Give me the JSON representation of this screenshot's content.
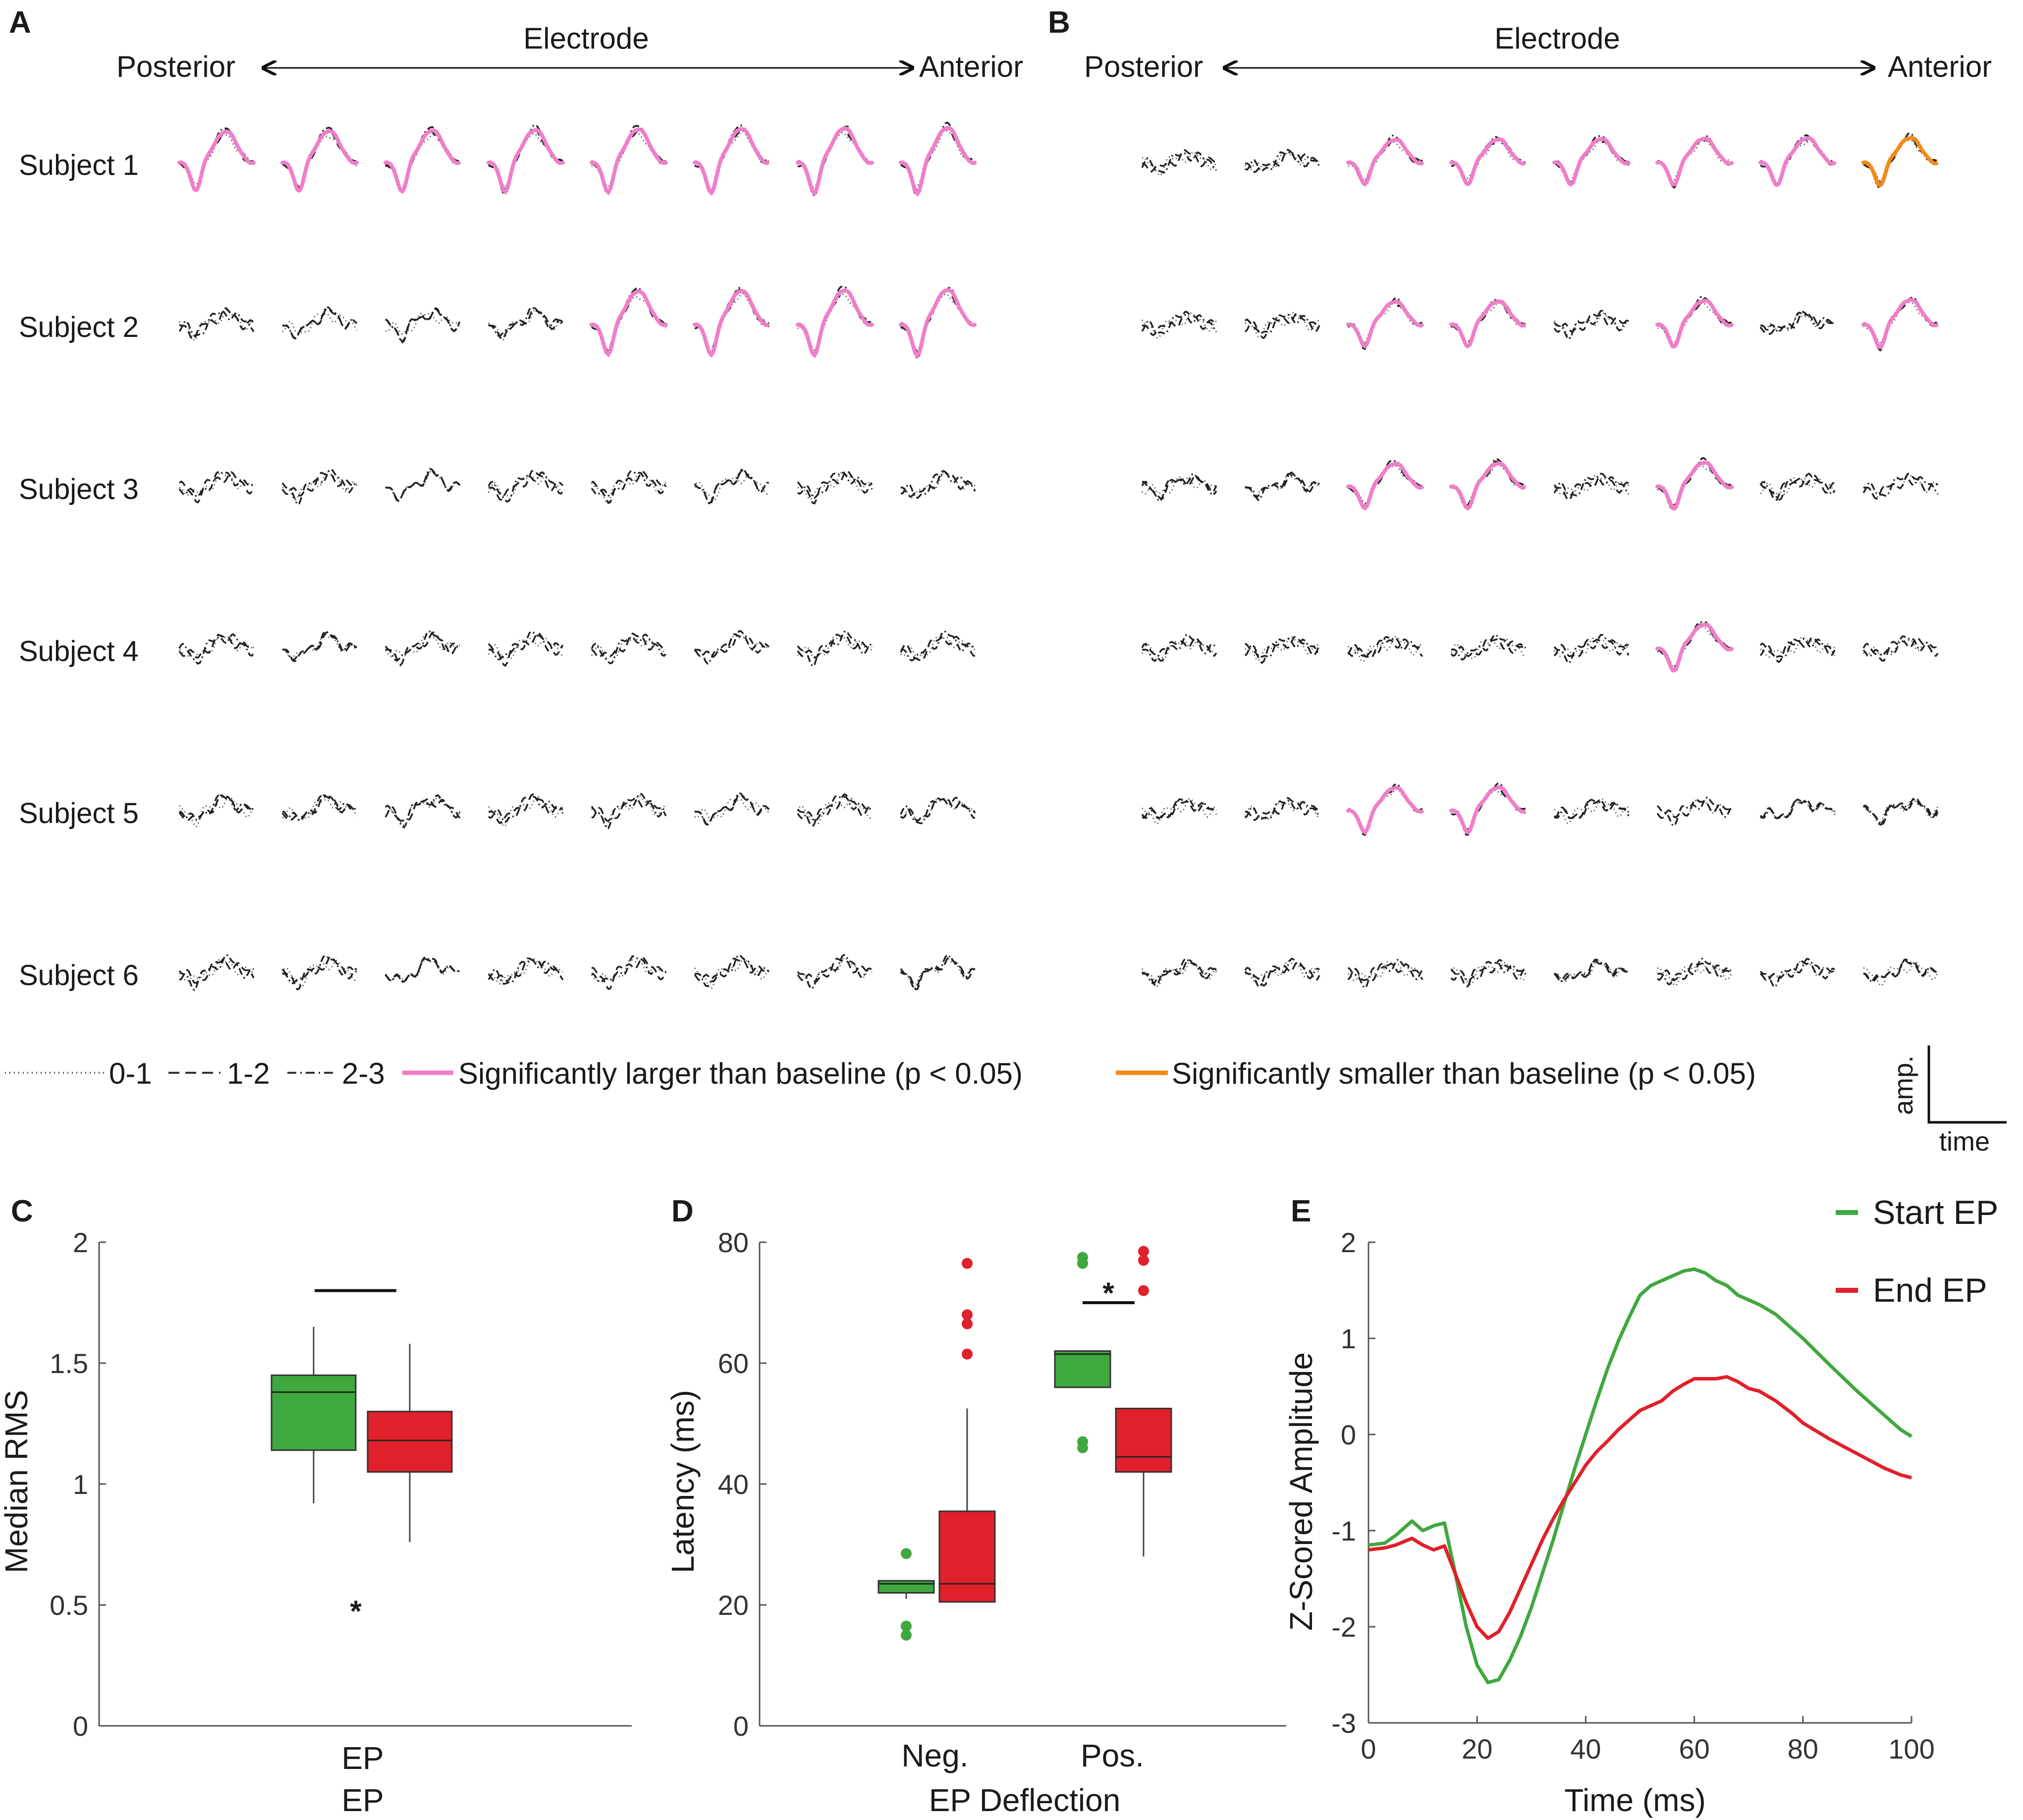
{
  "panels": {
    "A": "A",
    "B": "B",
    "C": "C",
    "D": "D",
    "E": "E"
  },
  "top": {
    "electrode_label": "Electrode",
    "posterior_label": "Posterior",
    "anterior_label": "Anterior",
    "subjects": [
      "Subject 1",
      "Subject 2",
      "Subject 3",
      "Subject 4",
      "Subject 5",
      "Subject 6"
    ],
    "electrodes_per_panel": 8,
    "significance_A": [
      [
        1,
        1,
        1,
        1,
        1,
        1,
        1,
        1
      ],
      [
        0,
        0,
        0,
        0,
        1,
        1,
        1,
        1
      ],
      [
        0,
        0,
        0,
        0,
        0,
        0,
        0,
        0
      ],
      [
        0,
        0,
        0,
        0,
        0,
        0,
        0,
        0
      ],
      [
        0,
        0,
        0,
        0,
        0,
        0,
        0,
        0
      ],
      [
        0,
        0,
        0,
        0,
        0,
        0,
        0,
        0
      ]
    ],
    "significance_B": [
      [
        0,
        0,
        1,
        1,
        1,
        1,
        1,
        2
      ],
      [
        0,
        0,
        1,
        1,
        0,
        1,
        0,
        1
      ],
      [
        0,
        0,
        1,
        1,
        0,
        1,
        0,
        0
      ],
      [
        0,
        0,
        0,
        0,
        0,
        1,
        0,
        0
      ],
      [
        0,
        0,
        1,
        1,
        0,
        0,
        0,
        0
      ],
      [
        0,
        0,
        0,
        0,
        0,
        0,
        0,
        0
      ]
    ]
  },
  "legend": {
    "items": [
      {
        "label": "0-1",
        "style": "dotted"
      },
      {
        "label": "1-2",
        "style": "dashed"
      },
      {
        "label": "2-3",
        "style": "dashdot"
      },
      {
        "label": "Significantly larger than baseline (p < 0.05)",
        "style": "pink"
      },
      {
        "label": "Significantly smaller than baseline (p < 0.05)",
        "style": "orange"
      }
    ],
    "scale_amp": "amp.",
    "scale_time": "time"
  },
  "colors": {
    "pink": "#f07ec8",
    "orange": "#f28a1a",
    "green": "#3fa83f",
    "red": "#e0202a",
    "trace": "#333333"
  },
  "chart_data": [
    {
      "id": "C",
      "type": "box",
      "ylabel": "Median RMS",
      "categories": [
        "EP"
      ],
      "xlabel": "EP",
      "ylim": [
        0,
        2
      ],
      "yticks": [
        0,
        0.5,
        1,
        1.5,
        2
      ],
      "ytick_labels": [
        "0",
        "0.5",
        "1",
        "1.5",
        "2"
      ],
      "boxes": [
        {
          "group": "Start EP",
          "color": "green",
          "whisker_low": 0.92,
          "q1": 1.14,
          "median": 1.38,
          "q3": 1.45,
          "whisker_high": 1.65,
          "outliers": []
        },
        {
          "group": "End EP",
          "color": "red",
          "whisker_low": 0.76,
          "q1": 1.05,
          "median": 1.18,
          "q3": 1.3,
          "whisker_high": 1.58,
          "outliers": []
        }
      ],
      "significance": {
        "label": "*",
        "y": 1.8
      }
    },
    {
      "id": "D",
      "type": "box",
      "ylabel": "Latency (ms)",
      "xlabel": "EP Deflection",
      "categories": [
        "Neg.",
        "Pos."
      ],
      "ylim": [
        0,
        80
      ],
      "yticks": [
        0,
        20,
        40,
        60,
        80
      ],
      "ytick_labels": [
        "0",
        "20",
        "40",
        "60",
        "80"
      ],
      "boxes": [
        {
          "category": "Neg.",
          "group": "Start EP",
          "color": "green",
          "whisker_low": 21,
          "q1": 22,
          "median": 23.5,
          "q3": 24,
          "whisker_high": 24,
          "outliers": [
            15,
            16.5,
            28.5
          ]
        },
        {
          "category": "Neg.",
          "group": "End EP",
          "color": "red",
          "whisker_low": 20.5,
          "q1": 20.5,
          "median": 23.5,
          "q3": 35.5,
          "whisker_high": 52.5,
          "outliers": [
            61.5,
            66.5,
            68,
            76.5
          ]
        },
        {
          "category": "Pos.",
          "group": "Start EP",
          "color": "green",
          "whisker_low": 56,
          "q1": 56,
          "median": 61.5,
          "q3": 62,
          "whisker_high": 62,
          "outliers": [
            46,
            47,
            76.5,
            77.5
          ]
        },
        {
          "category": "Pos.",
          "group": "End EP",
          "color": "red",
          "whisker_low": 28,
          "q1": 42,
          "median": 44.5,
          "q3": 52.5,
          "whisker_high": 52.5,
          "outliers": [
            72,
            77,
            78.5
          ]
        }
      ],
      "significance": {
        "label": "*",
        "y": 70,
        "category": "Pos."
      }
    },
    {
      "id": "E",
      "type": "line",
      "xlabel": "Time (ms)",
      "ylabel": "Z-Scored Amplitude",
      "xlim": [
        0,
        100
      ],
      "ylim": [
        -3,
        2
      ],
      "xticks": [
        0,
        20,
        40,
        60,
        80,
        100
      ],
      "xtick_labels": [
        "0",
        "20",
        "40",
        "60",
        "80",
        "100"
      ],
      "yticks": [
        -3,
        -2,
        -1,
        0,
        1,
        2
      ],
      "ytick_labels": [
        "-3",
        "-2",
        "-1",
        "0",
        "1",
        "2"
      ],
      "series": [
        {
          "name": "Start EP",
          "color": "green",
          "x": [
            0,
            3,
            5,
            8,
            10,
            12,
            14,
            16,
            18,
            20,
            22,
            24,
            26,
            28,
            30,
            32,
            34,
            36,
            38,
            40,
            42,
            44,
            46,
            48,
            50,
            52,
            54,
            56,
            58,
            60,
            62,
            64,
            66,
            68,
            70,
            72,
            75,
            78,
            80,
            85,
            90,
            95,
            98,
            100
          ],
          "y": [
            -1.15,
            -1.13,
            -1.05,
            -0.9,
            -1.0,
            -0.95,
            -0.92,
            -1.45,
            -2.0,
            -2.4,
            -2.58,
            -2.55,
            -2.35,
            -2.1,
            -1.8,
            -1.45,
            -1.1,
            -0.72,
            -0.35,
            0.0,
            0.35,
            0.68,
            0.97,
            1.22,
            1.45,
            1.55,
            1.6,
            1.65,
            1.7,
            1.72,
            1.68,
            1.6,
            1.55,
            1.45,
            1.4,
            1.35,
            1.25,
            1.1,
            1.0,
            0.72,
            0.45,
            0.2,
            0.05,
            -0.02
          ]
        },
        {
          "name": "End EP",
          "color": "red",
          "x": [
            0,
            3,
            5,
            8,
            10,
            12,
            14,
            16,
            18,
            20,
            22,
            24,
            26,
            28,
            30,
            32,
            34,
            36,
            38,
            40,
            42,
            44,
            46,
            48,
            50,
            52,
            54,
            56,
            58,
            60,
            62,
            64,
            66,
            68,
            70,
            72,
            75,
            78,
            80,
            85,
            90,
            95,
            98,
            100
          ],
          "y": [
            -1.2,
            -1.18,
            -1.15,
            -1.08,
            -1.15,
            -1.2,
            -1.16,
            -1.45,
            -1.75,
            -2.0,
            -2.12,
            -2.05,
            -1.85,
            -1.6,
            -1.35,
            -1.1,
            -0.88,
            -0.68,
            -0.5,
            -0.32,
            -0.18,
            -0.07,
            0.05,
            0.15,
            0.25,
            0.3,
            0.35,
            0.45,
            0.52,
            0.58,
            0.58,
            0.58,
            0.6,
            0.55,
            0.48,
            0.45,
            0.35,
            0.22,
            0.12,
            -0.05,
            -0.2,
            -0.35,
            -0.42,
            -0.45
          ]
        }
      ],
      "legend": [
        {
          "label": "Start EP",
          "color": "green"
        },
        {
          "label": "End EP",
          "color": "red"
        }
      ]
    }
  ]
}
